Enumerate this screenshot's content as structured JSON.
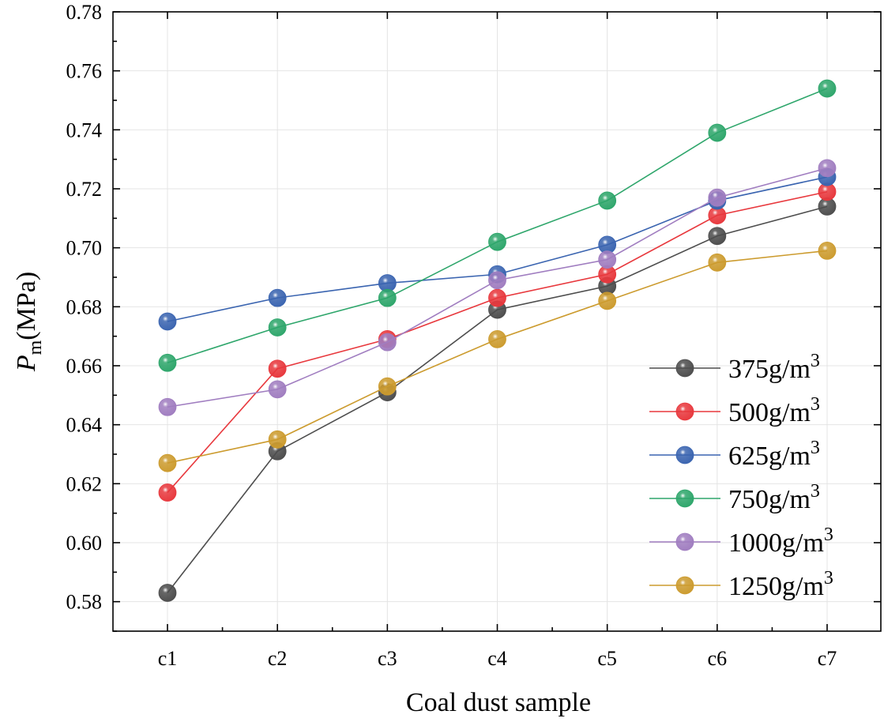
{
  "chart_data": {
    "type": "line",
    "xlabel": "Coal dust sample",
    "ylabel_main": "P",
    "ylabel_sub": "m",
    "ylabel_unit": "(MPa)",
    "categories": [
      "c1",
      "c2",
      "c3",
      "c4",
      "c5",
      "c6",
      "c7"
    ],
    "ylim": [
      0.57,
      0.78
    ],
    "yticks": [
      "0.58",
      "0.60",
      "0.62",
      "0.64",
      "0.66",
      "0.68",
      "0.70",
      "0.72",
      "0.74",
      "0.76",
      "0.78"
    ],
    "grid": true,
    "legend_position": "bottom-right",
    "series": [
      {
        "name": "375g/m",
        "unit_sup": "3",
        "color": "#4d4d4d",
        "values": [
          0.583,
          0.631,
          0.651,
          0.679,
          0.687,
          0.704,
          0.714
        ]
      },
      {
        "name": "500g/m",
        "unit_sup": "3",
        "color": "#e8383d",
        "values": [
          0.617,
          0.659,
          0.669,
          0.683,
          0.691,
          0.711,
          0.719
        ]
      },
      {
        "name": "625g/m",
        "unit_sup": "3",
        "color": "#3a64b0",
        "values": [
          0.675,
          0.683,
          0.688,
          0.691,
          0.701,
          0.716,
          0.724
        ]
      },
      {
        "name": "750g/m",
        "unit_sup": "3",
        "color": "#2ea66b",
        "values": [
          0.661,
          0.673,
          0.683,
          0.702,
          0.716,
          0.739,
          0.754
        ]
      },
      {
        "name": "1000g/m",
        "unit_sup": "3",
        "color": "#a07dc0",
        "values": [
          0.646,
          0.652,
          0.668,
          0.689,
          0.696,
          0.717,
          0.727
        ]
      },
      {
        "name": "1250g/m",
        "unit_sup": "3",
        "color": "#cc9b2e",
        "values": [
          0.627,
          0.635,
          0.653,
          0.669,
          0.682,
          0.695,
          0.699
        ]
      }
    ]
  }
}
